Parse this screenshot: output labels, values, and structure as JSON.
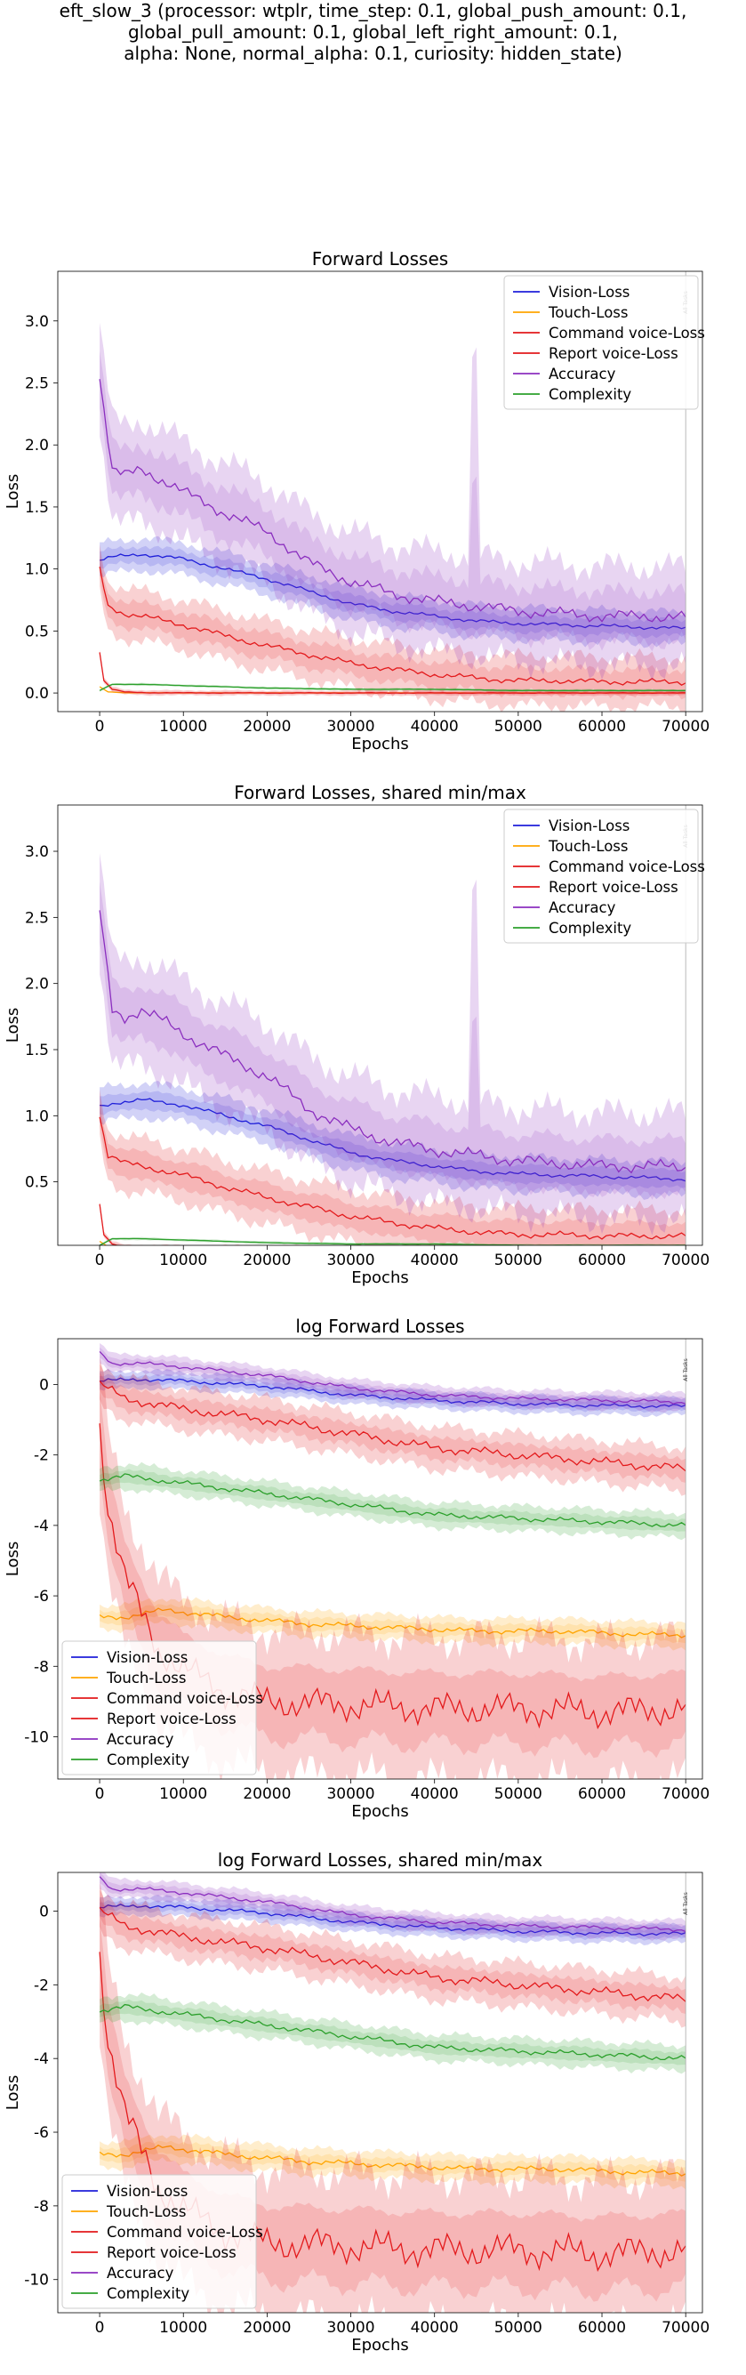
{
  "suptitle": {
    "line1": "eft_slow_3 (processor: wtplr, time_step: 0.1, global_push_amount: 0.1,",
    "line2": "global_pull_amount: 0.1, global_left_right_amount: 0.1,",
    "line3": "alpha: None, normal_alpha: 0.1, curiosity: hidden_state)"
  },
  "colors": {
    "Vision-Loss": "#1f1fd9",
    "Touch-Loss": "#ffa500",
    "Command voice-Loss": "#e31a1c",
    "Report voice-Loss": "#e31a1c",
    "Accuracy": "#8b2fbf",
    "Complexity": "#2ca02c"
  },
  "chart_data": [
    {
      "type": "line",
      "title": "Forward Losses",
      "xlabel": "Epochs",
      "ylabel": "Loss",
      "xlim": [
        -5000,
        72000
      ],
      "ylim": [
        -0.15,
        3.4
      ],
      "xticks": [
        "0",
        "10000",
        "20000",
        "30000",
        "40000",
        "50000",
        "60000",
        "70000"
      ],
      "yticks": [
        "0.0",
        "0.5",
        "1.0",
        "1.5",
        "2.0",
        "2.5",
        "3.0"
      ],
      "legend_loc": "upper right",
      "vline_label": "All Tasks",
      "series": [
        {
          "name": "Vision-Loss",
          "x": [
            0,
            2000,
            5000,
            10000,
            15000,
            20000,
            25000,
            30000,
            35000,
            40000,
            45000,
            50000,
            55000,
            60000,
            65000,
            70000
          ],
          "values": [
            1.07,
            1.1,
            1.12,
            1.08,
            1.0,
            0.92,
            0.82,
            0.72,
            0.66,
            0.62,
            0.58,
            0.56,
            0.55,
            0.54,
            0.53,
            0.52
          ],
          "band": 0.13
        },
        {
          "name": "Touch-Loss",
          "x": [
            0,
            1000,
            3000,
            10000,
            30000,
            50000,
            70000
          ],
          "values": [
            0.05,
            0.01,
            0.002,
            0.001,
            0.001,
            0.001,
            0.001
          ],
          "band": 0.005
        },
        {
          "name": "Command voice-Loss",
          "x": [
            0,
            500,
            1500,
            3000,
            6000,
            10000,
            20000,
            40000,
            70000
          ],
          "values": [
            0.33,
            0.1,
            0.03,
            0.008,
            0.002,
            0.001,
            0.0005,
            0.0002,
            0.0001
          ],
          "band": 0.02
        },
        {
          "name": "Report voice-Loss",
          "x": [
            0,
            1000,
            3000,
            5000,
            10000,
            15000,
            20000,
            25000,
            30000,
            35000,
            40000,
            45000,
            50000,
            55000,
            60000,
            65000,
            70000
          ],
          "values": [
            1.0,
            0.7,
            0.64,
            0.62,
            0.55,
            0.46,
            0.38,
            0.31,
            0.24,
            0.19,
            0.15,
            0.12,
            0.1,
            0.1,
            0.09,
            0.09,
            0.09
          ],
          "band": 0.2
        },
        {
          "name": "Accuracy",
          "x": [
            0,
            1500,
            3000,
            5000,
            8000,
            10000,
            15000,
            20000,
            25000,
            30000,
            35000,
            40000,
            45000,
            50000,
            55000,
            60000,
            65000,
            70000
          ],
          "values": [
            2.55,
            1.8,
            1.75,
            1.8,
            1.7,
            1.62,
            1.45,
            1.3,
            1.05,
            0.9,
            0.8,
            0.74,
            0.7,
            0.66,
            0.64,
            0.62,
            0.62,
            0.61
          ],
          "band": 0.4
        },
        {
          "name": "Complexity",
          "x": [
            0,
            1500,
            3000,
            5000,
            10000,
            20000,
            30000,
            40000,
            50000,
            60000,
            70000
          ],
          "values": [
            0.02,
            0.07,
            0.07,
            0.07,
            0.06,
            0.04,
            0.03,
            0.03,
            0.02,
            0.02,
            0.02
          ],
          "band": 0.01
        }
      ]
    },
    {
      "type": "line",
      "title": "Forward Losses, shared min/max",
      "xlabel": "Epochs",
      "ylabel": "Loss",
      "xlim": [
        -5000,
        72000
      ],
      "ylim": [
        0.02,
        3.35
      ],
      "xticks": [
        "0",
        "10000",
        "20000",
        "30000",
        "40000",
        "50000",
        "60000",
        "70000"
      ],
      "yticks": [
        "0.5",
        "1.0",
        "1.5",
        "2.0",
        "2.5",
        "3.0"
      ],
      "legend_loc": "upper right",
      "vline_label": "All Tasks",
      "series": [
        {
          "name": "Vision-Loss",
          "x": [
            0,
            2000,
            5000,
            10000,
            15000,
            20000,
            25000,
            30000,
            35000,
            40000,
            45000,
            50000,
            55000,
            60000,
            65000,
            70000
          ],
          "values": [
            1.07,
            1.1,
            1.12,
            1.08,
            1.0,
            0.92,
            0.82,
            0.72,
            0.66,
            0.62,
            0.58,
            0.56,
            0.55,
            0.54,
            0.53,
            0.52
          ],
          "band": 0.13
        },
        {
          "name": "Touch-Loss",
          "x": [
            0,
            1000,
            3000,
            10000,
            30000,
            50000,
            70000
          ],
          "values": [
            0.05,
            0.01,
            0.002,
            0.001,
            0.001,
            0.001,
            0.001
          ],
          "band": 0.005
        },
        {
          "name": "Command voice-Loss",
          "x": [
            0,
            500,
            1500,
            3000,
            6000,
            10000,
            20000,
            40000,
            70000
          ],
          "values": [
            0.33,
            0.1,
            0.03,
            0.008,
            0.002,
            0.001,
            0.0005,
            0.0002,
            0.0001
          ],
          "band": 0.02
        },
        {
          "name": "Report voice-Loss",
          "x": [
            0,
            1000,
            3000,
            5000,
            10000,
            15000,
            20000,
            25000,
            30000,
            35000,
            40000,
            45000,
            50000,
            55000,
            60000,
            65000,
            70000
          ],
          "values": [
            1.0,
            0.7,
            0.64,
            0.62,
            0.55,
            0.46,
            0.38,
            0.31,
            0.24,
            0.19,
            0.15,
            0.12,
            0.1,
            0.1,
            0.09,
            0.09,
            0.09
          ],
          "band": 0.2
        },
        {
          "name": "Accuracy",
          "x": [
            0,
            1500,
            3000,
            5000,
            8000,
            10000,
            15000,
            20000,
            25000,
            30000,
            35000,
            40000,
            45000,
            50000,
            55000,
            60000,
            65000,
            70000
          ],
          "values": [
            2.55,
            1.8,
            1.75,
            1.8,
            1.7,
            1.62,
            1.45,
            1.3,
            1.05,
            0.9,
            0.8,
            0.74,
            0.7,
            0.66,
            0.64,
            0.62,
            0.62,
            0.61
          ],
          "band": 0.4
        },
        {
          "name": "Complexity",
          "x": [
            0,
            1500,
            3000,
            5000,
            10000,
            20000,
            30000,
            40000,
            50000,
            60000,
            70000
          ],
          "values": [
            0.02,
            0.07,
            0.07,
            0.07,
            0.06,
            0.04,
            0.03,
            0.03,
            0.02,
            0.02,
            0.02
          ],
          "band": 0.01
        }
      ]
    },
    {
      "type": "line",
      "title": "log Forward Losses",
      "xlabel": "Epochs",
      "ylabel": "Loss",
      "xlim": [
        -5000,
        72000
      ],
      "ylim": [
        -11.2,
        1.3
      ],
      "xticks": [
        "0",
        "10000",
        "20000",
        "30000",
        "40000",
        "50000",
        "60000",
        "70000"
      ],
      "yticks": [
        "0",
        "-2",
        "-4",
        "-6",
        "-8",
        "-10"
      ],
      "legend_loc": "lower left",
      "vline_label": "All Tasks",
      "series": [
        {
          "name": "Vision-Loss",
          "x": [
            0,
            5000,
            10000,
            20000,
            30000,
            40000,
            50000,
            60000,
            70000
          ],
          "values": [
            0.1,
            0.15,
            0.1,
            -0.05,
            -0.3,
            -0.45,
            -0.55,
            -0.6,
            -0.62
          ],
          "band": 0.25
        },
        {
          "name": "Touch-Loss",
          "x": [
            0,
            3000,
            8000,
            15000,
            25000,
            35000,
            45000,
            55000,
            65000,
            70000
          ],
          "values": [
            -6.6,
            -6.6,
            -6.4,
            -6.6,
            -6.8,
            -6.9,
            -7.0,
            -7.0,
            -7.1,
            -7.1
          ],
          "band": 0.35
        },
        {
          "name": "Command voice-Loss",
          "x": [
            0,
            1000,
            3000,
            5000,
            7000,
            10000,
            15000,
            20000,
            30000,
            40000,
            50000,
            60000,
            70000
          ],
          "values": [
            -1.1,
            -3.5,
            -5.5,
            -6.5,
            -7.5,
            -8.1,
            -8.7,
            -9.0,
            -9.1,
            -9.2,
            -9.2,
            -9.3,
            -9.2
          ],
          "band": 2.0
        },
        {
          "name": "Report voice-Loss",
          "x": [
            0,
            3000,
            10000,
            20000,
            30000,
            40000,
            50000,
            60000,
            70000
          ],
          "values": [
            0.0,
            -0.4,
            -0.7,
            -1.0,
            -1.4,
            -1.8,
            -2.0,
            -2.2,
            -2.4
          ],
          "band": 0.6
        },
        {
          "name": "Accuracy",
          "x": [
            0,
            1500,
            5000,
            10000,
            20000,
            30000,
            40000,
            50000,
            60000,
            70000
          ],
          "values": [
            0.9,
            0.6,
            0.6,
            0.5,
            0.25,
            -0.1,
            -0.3,
            -0.4,
            -0.45,
            -0.5
          ],
          "band": 0.25
        },
        {
          "name": "Complexity",
          "x": [
            0,
            3000,
            10000,
            20000,
            30000,
            40000,
            50000,
            60000,
            70000
          ],
          "values": [
            -2.7,
            -2.6,
            -2.8,
            -3.1,
            -3.4,
            -3.7,
            -3.8,
            -3.9,
            -4.0
          ],
          "band": 0.35
        }
      ]
    },
    {
      "type": "line",
      "title": "log Forward Losses, shared min/max",
      "xlabel": "Epochs",
      "ylabel": "Loss",
      "xlim": [
        -5000,
        72000
      ],
      "ylim": [
        -10.9,
        1.05
      ],
      "xticks": [
        "0",
        "10000",
        "20000",
        "30000",
        "40000",
        "50000",
        "60000",
        "70000"
      ],
      "yticks": [
        "0",
        "-2",
        "-4",
        "-6",
        "-8",
        "-10"
      ],
      "legend_loc": "lower left",
      "vline_label": "All Tasks",
      "series": [
        {
          "name": "Vision-Loss",
          "x": [
            0,
            5000,
            10000,
            20000,
            30000,
            40000,
            50000,
            60000,
            70000
          ],
          "values": [
            0.1,
            0.15,
            0.1,
            -0.05,
            -0.3,
            -0.45,
            -0.55,
            -0.6,
            -0.62
          ],
          "band": 0.25
        },
        {
          "name": "Touch-Loss",
          "x": [
            0,
            3000,
            8000,
            15000,
            25000,
            35000,
            45000,
            55000,
            65000,
            70000
          ],
          "values": [
            -6.6,
            -6.6,
            -6.4,
            -6.6,
            -6.8,
            -6.9,
            -7.0,
            -7.0,
            -7.1,
            -7.1
          ],
          "band": 0.35
        },
        {
          "name": "Command voice-Loss",
          "x": [
            0,
            1000,
            3000,
            5000,
            7000,
            10000,
            15000,
            20000,
            30000,
            40000,
            50000,
            60000,
            70000
          ],
          "values": [
            -1.1,
            -3.5,
            -5.5,
            -6.5,
            -7.5,
            -8.1,
            -8.7,
            -9.0,
            -9.1,
            -9.2,
            -9.2,
            -9.3,
            -9.2
          ],
          "band": 2.0
        },
        {
          "name": "Report voice-Loss",
          "x": [
            0,
            3000,
            10000,
            20000,
            30000,
            40000,
            50000,
            60000,
            70000
          ],
          "values": [
            0.0,
            -0.4,
            -0.7,
            -1.0,
            -1.4,
            -1.8,
            -2.0,
            -2.2,
            -2.4
          ],
          "band": 0.6
        },
        {
          "name": "Accuracy",
          "x": [
            0,
            1500,
            5000,
            10000,
            20000,
            30000,
            40000,
            50000,
            60000,
            70000
          ],
          "values": [
            0.9,
            0.6,
            0.6,
            0.5,
            0.25,
            -0.1,
            -0.3,
            -0.4,
            -0.45,
            -0.5
          ],
          "band": 0.25
        },
        {
          "name": "Complexity",
          "x": [
            0,
            3000,
            10000,
            20000,
            30000,
            40000,
            50000,
            60000,
            70000
          ],
          "values": [
            -2.7,
            -2.6,
            -2.8,
            -3.1,
            -3.4,
            -3.7,
            -3.8,
            -3.9,
            -4.0
          ],
          "band": 0.35
        }
      ]
    }
  ]
}
